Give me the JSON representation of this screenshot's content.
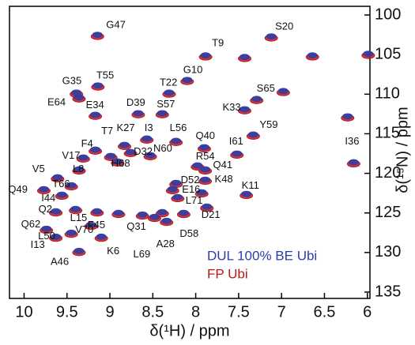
{
  "chart_data": {
    "type": "scatter",
    "x_label": "δ(¹H) / ppm",
    "y_label": "δ(¹⁵N) / ppm",
    "xlim": [
      10.17,
      5.97
    ],
    "ylim": [
      98.9,
      135.8
    ],
    "xticks": [
      10,
      9.5,
      9,
      8.5,
      8,
      7.5,
      7,
      6.5,
      6
    ],
    "yticks": [
      100,
      105,
      110,
      115,
      120,
      125,
      130,
      135
    ],
    "legend": "lower right",
    "labels": [
      "G47",
      "S20",
      "T9",
      "G10",
      "T22",
      "T55",
      "G35",
      "E64",
      "E34",
      "D39",
      "S57",
      "S65",
      "K33",
      "Y59",
      "I3",
      "L56",
      "Q40",
      "K27",
      "F4",
      "T7",
      "I61",
      "V17",
      "D32",
      "N60",
      "H68",
      "L8",
      "V5",
      "R54",
      "Q41",
      "I36",
      "K48",
      "D52",
      "E16",
      "K11",
      "T66",
      "Q49",
      "I44",
      "L71",
      "Q2",
      "D21",
      "L15",
      "F45",
      "Q31",
      "D58",
      "V70",
      "Q62",
      "I13",
      "L50",
      "K6",
      "A28",
      "L69",
      "A46",
      null,
      null,
      null,
      null,
      null,
      null,
      null,
      null
    ],
    "series": [
      {
        "name": "FP Ubi",
        "color": "#c0161c",
        "x": [
          9.145,
          7.12,
          7.885,
          8.1,
          8.31,
          9.14,
          9.39,
          9.36,
          9.17,
          8.67,
          8.39,
          7.29,
          7.43,
          7.33,
          8.57,
          8.23,
          7.9,
          8.83,
          9.17,
          8.99,
          7.52,
          9.31,
          8.76,
          8.53,
          8.91,
          9.36,
          9.61,
          7.98,
          7.89,
          6.16,
          7.89,
          8.23,
          8.27,
          7.41,
          9.45,
          9.77,
          9.56,
          8.21,
          9.63,
          7.87,
          9.4,
          9.15,
          8.62,
          8.14,
          9.22,
          9.74,
          9.63,
          9.45,
          9.1,
          8.34,
          8.48,
          9.36,
          5.99,
          6.64,
          6.98,
          6.23,
          7.43,
          8.9,
          8.39,
          7.93
        ],
        "values": [
          102.7,
          102.9,
          105.3,
          108.4,
          110,
          109.1,
          110,
          110.6,
          112.8,
          112.6,
          112.6,
          110.8,
          112.1,
          115.3,
          115.8,
          116.1,
          116.9,
          116.6,
          117.2,
          118,
          117.7,
          118.2,
          117.5,
          117.9,
          118.7,
          119.7,
          120.7,
          119.2,
          119.7,
          118.8,
          121,
          121.4,
          122.2,
          122.8,
          121.7,
          122.2,
          122.9,
          123.2,
          125,
          124.4,
          124.7,
          125,
          125.4,
          125.2,
          126.7,
          127.2,
          128.2,
          127.7,
          128.2,
          126.2,
          125.7,
          130,
          105.1,
          105.3,
          109.8,
          113,
          105.5,
          125.2,
          125.1,
          122.6
        ]
      },
      {
        "name": "DUL 100% BE Ubi",
        "color": "#2b3ea8",
        "x": [
          9.145,
          7.12,
          7.885,
          8.1,
          8.31,
          9.14,
          9.39,
          9.36,
          9.17,
          8.67,
          8.39,
          7.29,
          7.43,
          7.33,
          8.57,
          8.23,
          7.9,
          8.83,
          9.17,
          8.99,
          7.52,
          9.31,
          8.76,
          8.53,
          8.91,
          9.36,
          9.61,
          7.98,
          7.89,
          6.16,
          7.89,
          8.23,
          8.27,
          7.41,
          9.45,
          9.77,
          9.56,
          8.21,
          9.63,
          7.87,
          9.4,
          9.15,
          8.62,
          8.14,
          9.22,
          9.74,
          9.63,
          9.45,
          9.1,
          8.34,
          8.48,
          9.36,
          5.99,
          6.64,
          6.98,
          6.23,
          7.43,
          8.9,
          8.39,
          7.93
        ],
        "values": [
          102.5,
          102.7,
          105.1,
          108.2,
          109.8,
          108.9,
          109.8,
          110.4,
          112.6,
          112.4,
          112.4,
          110.6,
          111.9,
          115.1,
          115.6,
          115.9,
          116.7,
          116.4,
          117,
          117.8,
          117.5,
          118,
          117.3,
          117.7,
          118.5,
          119.5,
          120.5,
          119,
          119.5,
          118.6,
          120.8,
          121.2,
          122,
          122.6,
          121.5,
          122,
          122.7,
          123,
          124.8,
          124.2,
          124.5,
          124.8,
          125.2,
          125,
          126.5,
          127,
          128,
          127.5,
          128,
          126,
          125.5,
          129.8,
          104.9,
          105.1,
          109.6,
          112.8,
          105.3,
          125,
          124.9,
          122.4
        ]
      }
    ]
  }
}
